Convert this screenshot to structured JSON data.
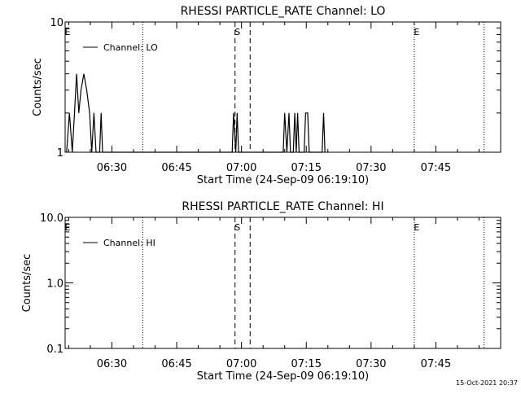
{
  "footer": {
    "timestamp": "15-Oct-2021 20:37"
  },
  "chart_data": [
    {
      "type": "line",
      "title": "RHESSI PARTICLE_RATE Channel: LO",
      "xlabel": "Start Time (24-Sep-09 06:19:10)",
      "ylabel": "Counts/sec",
      "yscale": "log",
      "ylim": [
        1,
        10
      ],
      "y_ticks": [
        {
          "value": 1,
          "label": "1"
        },
        {
          "value": 10,
          "label": "10"
        }
      ],
      "xlim": [
        "06:19:10",
        "08:00:00"
      ],
      "x_ticks": [
        "06:30",
        "06:45",
        "07:00",
        "07:15",
        "07:30",
        "07:45"
      ],
      "legend": {
        "position": "top-left",
        "entries": [
          "Channel: LO"
        ]
      },
      "event_markers": [
        {
          "time": "06:19:10",
          "label": "E",
          "style": "solid"
        },
        {
          "time": "06:37:10",
          "label": "",
          "style": "dotted"
        },
        {
          "time": "06:58:30",
          "label": "S",
          "style": "dashed"
        },
        {
          "time": "07:02:00",
          "label": "",
          "style": "dashed"
        },
        {
          "time": "07:40:00",
          "label": "E",
          "style": "dotted"
        },
        {
          "time": "07:56:10",
          "label": "",
          "style": "dotted"
        }
      ],
      "series": [
        {
          "name": "Channel: LO",
          "points": [
            [
              "06:19:30",
              1
            ],
            [
              "06:20:10",
              2
            ],
            [
              "06:20:50",
              1
            ],
            [
              "06:21:20",
              2
            ],
            [
              "06:21:50",
              4
            ],
            [
              "06:22:20",
              2
            ],
            [
              "06:22:50",
              3
            ],
            [
              "06:23:30",
              4
            ],
            [
              "06:24:10",
              3
            ],
            [
              "06:24:50",
              2
            ],
            [
              "06:25:20",
              1
            ],
            [
              "06:25:50",
              2
            ],
            [
              "06:26:20",
              1
            ],
            [
              "06:27:10",
              1
            ],
            [
              "06:27:30",
              2
            ],
            [
              "06:27:50",
              1
            ],
            [
              "06:57:50",
              1
            ],
            [
              "06:58:10",
              2
            ],
            [
              "06:58:40",
              1
            ],
            [
              "06:59:00",
              2
            ],
            [
              "06:59:20",
              1
            ],
            [
              "07:09:40",
              1
            ],
            [
              "07:10:00",
              2
            ],
            [
              "07:10:30",
              1
            ],
            [
              "07:11:00",
              2
            ],
            [
              "07:11:20",
              1
            ],
            [
              "07:12:00",
              1
            ],
            [
              "07:12:20",
              2
            ],
            [
              "07:12:40",
              1
            ],
            [
              "07:13:00",
              2
            ],
            [
              "07:13:20",
              1
            ],
            [
              "07:14:30",
              1
            ],
            [
              "07:14:50",
              2
            ],
            [
              "07:15:20",
              2
            ],
            [
              "07:15:40",
              1
            ],
            [
              "07:18:40",
              1
            ],
            [
              "07:19:00",
              2
            ],
            [
              "07:19:20",
              1
            ]
          ]
        }
      ]
    },
    {
      "type": "line",
      "title": "RHESSI PARTICLE_RATE Channel: HI",
      "xlabel": "Start Time (24-Sep-09 06:19:10)",
      "ylabel": "Counts/sec",
      "yscale": "log",
      "ylim": [
        0.1,
        10
      ],
      "y_ticks": [
        {
          "value": 0.1,
          "label": "0.1"
        },
        {
          "value": 1,
          "label": "1.0"
        },
        {
          "value": 10,
          "label": "10.0"
        }
      ],
      "xlim": [
        "06:19:10",
        "08:00:00"
      ],
      "x_ticks": [
        "06:30",
        "06:45",
        "07:00",
        "07:15",
        "07:30",
        "07:45"
      ],
      "legend": {
        "position": "top-left",
        "entries": [
          "Channel: HI"
        ]
      },
      "event_markers": [
        {
          "time": "06:19:10",
          "label": "E",
          "style": "solid"
        },
        {
          "time": "06:37:10",
          "label": "",
          "style": "dotted"
        },
        {
          "time": "06:58:30",
          "label": "S",
          "style": "dashed"
        },
        {
          "time": "07:02:00",
          "label": "",
          "style": "dashed"
        },
        {
          "time": "07:40:00",
          "label": "E",
          "style": "dotted"
        },
        {
          "time": "07:56:10",
          "label": "",
          "style": "dotted"
        }
      ],
      "series": [
        {
          "name": "Channel: HI",
          "points": []
        }
      ]
    }
  ]
}
